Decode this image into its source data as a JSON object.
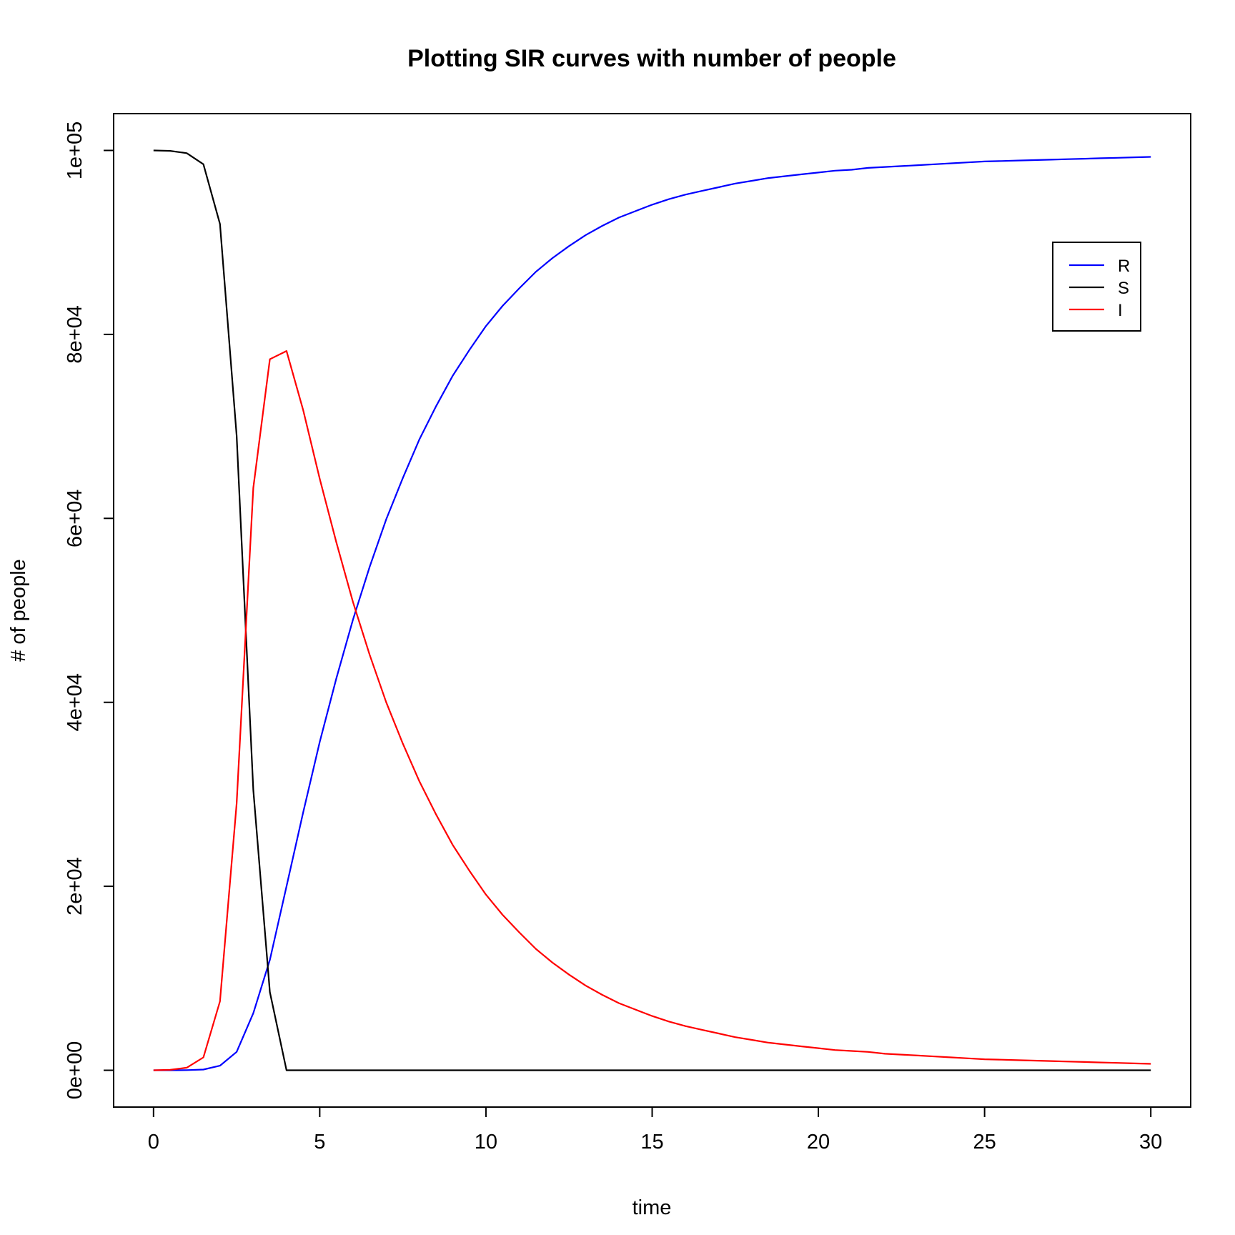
{
  "chart_data": {
    "type": "line",
    "title": "Plotting SIR curves with number of people",
    "xlabel": "time",
    "ylabel": "# of people",
    "xlim": [
      -1.2,
      31.2
    ],
    "ylim": [
      -4000,
      104000
    ],
    "x_ticks": [
      0,
      5,
      10,
      15,
      20,
      25,
      30
    ],
    "x_tick_labels": [
      "0",
      "5",
      "10",
      "15",
      "20",
      "25",
      "30"
    ],
    "y_ticks": [
      0,
      20000,
      40000,
      60000,
      80000,
      100000
    ],
    "y_tick_labels": [
      "0e+00",
      "2e+04",
      "4e+04",
      "6e+04",
      "8e+04",
      "1e+05"
    ],
    "legend": {
      "position": "top-right",
      "entries": [
        {
          "label": "R",
          "color": "#0000ff"
        },
        {
          "label": "S",
          "color": "#000000"
        },
        {
          "label": "I",
          "color": "#ff0000"
        }
      ]
    },
    "x": [
      0,
      0.5,
      1,
      1.5,
      2,
      2.5,
      3,
      3.5,
      4,
      4.5,
      5,
      5.5,
      6,
      6.5,
      7,
      7.5,
      8,
      8.5,
      9,
      9.5,
      10,
      10.5,
      11,
      11.5,
      12,
      12.5,
      13,
      13.5,
      14,
      14.5,
      15,
      15.5,
      16,
      16.5,
      17,
      17.5,
      18,
      18.5,
      19,
      19.5,
      20,
      20.5,
      21,
      21.5,
      22,
      22.5,
      23,
      23.5,
      24,
      24.5,
      25,
      25.5,
      26,
      26.5,
      27,
      27.5,
      28,
      28.5,
      29,
      29.5,
      30
    ],
    "series": [
      {
        "name": "R",
        "color": "#0000ff",
        "values": [
          0,
          2,
          20,
          80,
          500,
          2000,
          6200,
          12000,
          20000,
          28000,
          35700,
          42600,
          49000,
          54700,
          59900,
          64400,
          68600,
          72200,
          75500,
          78300,
          80900,
          83100,
          85000,
          86800,
          88300,
          89600,
          90800,
          91800,
          92700,
          93400,
          94100,
          94700,
          95200,
          95600,
          96000,
          96400,
          96700,
          97000,
          97200,
          97400,
          97600,
          97800,
          97900,
          98100,
          98200,
          98300,
          98400,
          98500,
          98600,
          98700,
          98800,
          98850,
          98900,
          98950,
          99000,
          99050,
          99100,
          99150,
          99200,
          99250,
          99300
        ]
      },
      {
        "name": "S",
        "color": "#000000",
        "values": [
          100000,
          99950,
          99700,
          98500,
          92000,
          69000,
          30500,
          8500,
          0,
          0,
          0,
          0,
          0,
          0,
          0,
          0,
          0,
          0,
          0,
          0,
          0,
          0,
          0,
          0,
          0,
          0,
          0,
          0,
          0,
          0,
          0,
          0,
          0,
          0,
          0,
          0,
          0,
          0,
          0,
          0,
          0,
          0,
          0,
          0,
          0,
          0,
          0,
          0,
          0,
          0,
          0,
          0,
          0,
          0,
          0,
          0,
          0,
          0,
          0,
          0,
          0
        ]
      },
      {
        "name": "I",
        "color": "#ff0000",
        "values": [
          0,
          50,
          280,
          1400,
          7500,
          29000,
          63300,
          77300,
          78200,
          71800,
          64300,
          57400,
          50900,
          45200,
          40000,
          35500,
          31400,
          27800,
          24500,
          21700,
          19100,
          16900,
          15000,
          13200,
          11700,
          10400,
          9200,
          8200,
          7300,
          6600,
          5900,
          5300,
          4800,
          4400,
          4000,
          3600,
          3300,
          3000,
          2800,
          2600,
          2400,
          2200,
          2100,
          2000,
          1800,
          1700,
          1600,
          1500,
          1400,
          1300,
          1200,
          1150,
          1100,
          1050,
          1000,
          950,
          900,
          850,
          800,
          750,
          700
        ]
      }
    ]
  }
}
